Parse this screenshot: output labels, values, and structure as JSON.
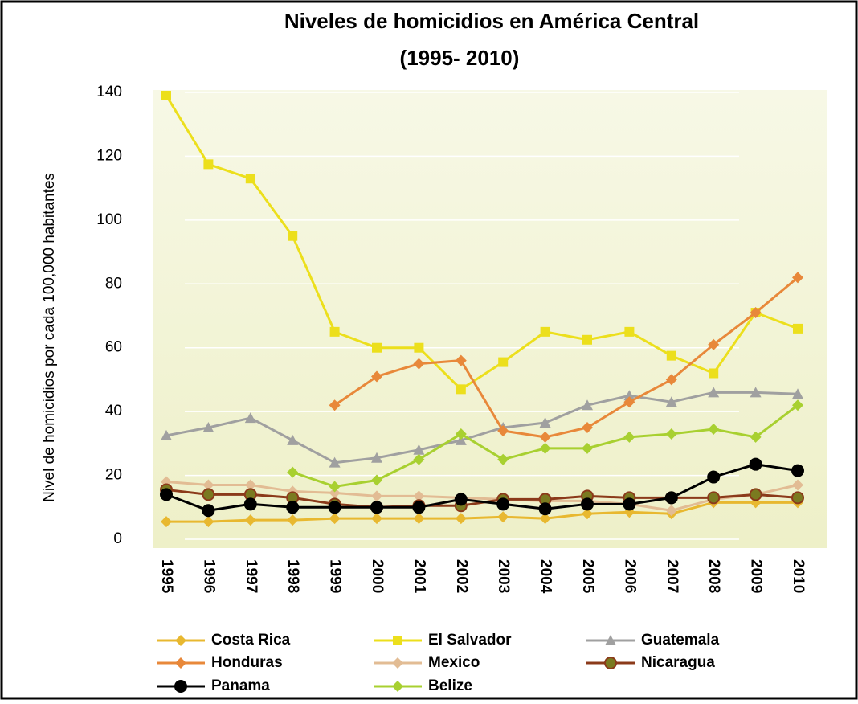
{
  "chart_data": {
    "type": "line",
    "title": "Niveles de homicidios en América Central",
    "subtitle": "(1995- 2010)",
    "y_label": "Nivel de homicidios por cada 100,000 habitantes",
    "categories": [
      "1995",
      "1996",
      "1997",
      "1998",
      "1999",
      "2000",
      "2001",
      "2002",
      "2003",
      "2004",
      "2005",
      "2006",
      "2007",
      "2008",
      "2009",
      "2010"
    ],
    "ylim": [
      0,
      140
    ],
    "yticks": [
      0,
      20,
      40,
      60,
      80,
      100,
      120,
      140
    ],
    "grid": true,
    "legend": "bottom",
    "series": [
      {
        "name": "Costa Rica",
        "color": "#e8b830",
        "marker": "diamond",
        "values": [
          5.5,
          5.5,
          6,
          6,
          6.5,
          6.5,
          6.5,
          6.5,
          7,
          6.5,
          8,
          8.5,
          8,
          11.5,
          11.5,
          11.5
        ]
      },
      {
        "name": "El Salvador",
        "color": "#ecdf1c",
        "marker": "square",
        "values": [
          139,
          117.5,
          113,
          95,
          65,
          60,
          60,
          47,
          55.5,
          65,
          62.5,
          65,
          57.5,
          52,
          71,
          66
        ]
      },
      {
        "name": "Guatemala",
        "color": "#a0a0a0",
        "marker": "triangle",
        "values": [
          32.5,
          35,
          38,
          31,
          24,
          25.5,
          28,
          31,
          35,
          36.5,
          42,
          45,
          43,
          46,
          46,
          45.5
        ]
      },
      {
        "name": "Honduras",
        "color": "#e8883a",
        "marker": "diamond",
        "values": [
          null,
          null,
          null,
          null,
          42,
          51,
          55,
          56,
          34,
          32,
          35,
          43,
          50,
          61,
          71,
          82
        ]
      },
      {
        "name": "Mexico",
        "color": "#e2bc94",
        "marker": "diamond",
        "values": [
          18,
          17,
          17,
          15,
          14.5,
          13.5,
          13.5,
          13,
          12.5,
          12,
          12,
          11,
          9,
          12.5,
          14,
          17
        ]
      },
      {
        "name": "Nicaragua",
        "color": "#8b3a1a",
        "marker": "circle",
        "values": [
          15.5,
          14,
          14,
          13,
          11,
          10,
          10.5,
          10.5,
          12.5,
          12.5,
          13.5,
          13,
          13,
          13,
          14,
          13
        ]
      },
      {
        "name": "Panama",
        "color": "#000000",
        "marker": "circle",
        "values": [
          14,
          9,
          11,
          10,
          10,
          10,
          10,
          12.5,
          11,
          9.5,
          11,
          11,
          13,
          19.5,
          23.5,
          21.5
        ]
      },
      {
        "name": "Belize",
        "color": "#a8d030",
        "marker": "diamond",
        "values": [
          null,
          null,
          null,
          21,
          16.5,
          18.5,
          25,
          33,
          25,
          28.5,
          28.5,
          32,
          33,
          34.5,
          32,
          42
        ]
      }
    ]
  }
}
